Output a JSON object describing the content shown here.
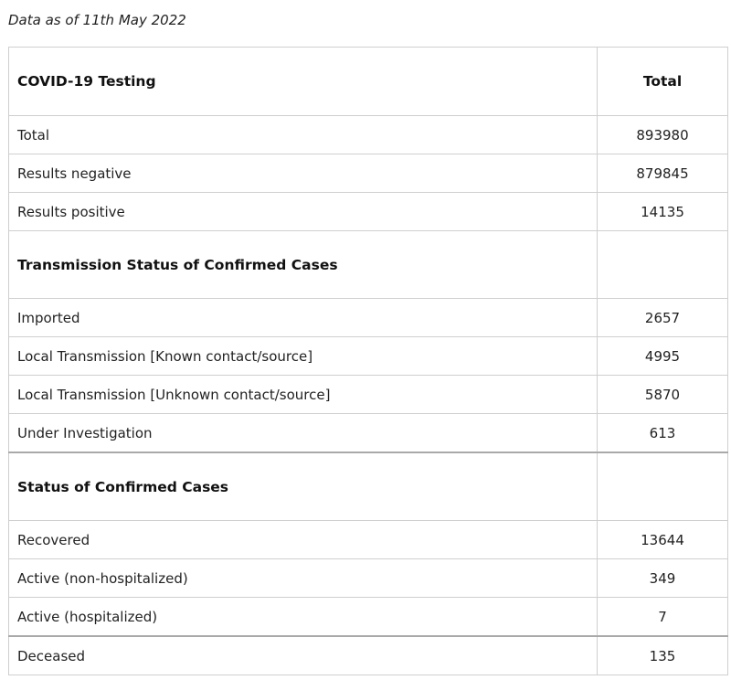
{
  "caption": "Data as of 11th May 2022",
  "table": {
    "header": {
      "label": "COVID-19 Testing",
      "value_label": "Total"
    },
    "testing_rows": [
      {
        "label": "Total",
        "value": "893980"
      },
      {
        "label": "Results negative",
        "value": "879845"
      },
      {
        "label": "Results positive",
        "value": "14135"
      }
    ],
    "transmission_section": {
      "label": "Transmission Status of Confirmed Cases"
    },
    "transmission_rows": [
      {
        "label": "Imported",
        "value": "2657"
      },
      {
        "label": "Local Transmission [Known contact/source]",
        "value": "4995"
      },
      {
        "label": "Local Transmission [Unknown contact/source]",
        "value": "5870"
      },
      {
        "label": "Under Investigation",
        "value": "613"
      }
    ],
    "status_section": {
      "label": "Status of Confirmed Cases"
    },
    "status_rows": [
      {
        "label": "Recovered",
        "value": "13644"
      },
      {
        "label": "Active (non-hospitalized)",
        "value": "349"
      },
      {
        "label": "Active (hospitalized)",
        "value": "7"
      },
      {
        "label": "Deceased",
        "value": "135"
      }
    ]
  }
}
